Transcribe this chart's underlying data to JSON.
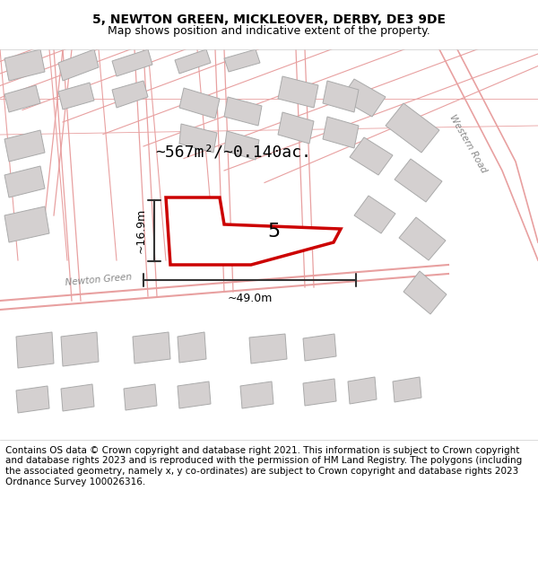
{
  "title": "5, NEWTON GREEN, MICKLEOVER, DERBY, DE3 9DE",
  "subtitle": "Map shows position and indicative extent of the property.",
  "area_text": "~567m²/~0.140ac.",
  "label_5": "5",
  "width_label": "~49.0m",
  "height_label": "~16.9m",
  "road_label": "Newton Green",
  "road_label2": "Western Road",
  "footer": "Contains OS data © Crown copyright and database right 2021. This information is subject to Crown copyright and database rights 2023 and is reproduced with the permission of HM Land Registry. The polygons (including the associated geometry, namely x, y co-ordinates) are subject to Crown copyright and database rights 2023 Ordnance Survey 100026316.",
  "bg_color": "#f5f5f5",
  "map_bg": "#f0eeee",
  "building_color": "#d4d0d0",
  "road_line_color": "#e8a0a0",
  "road_fill_color": "#ffffff",
  "property_color": "#cc0000",
  "property_fill": "#ffffff",
  "dim_line_color": "#333333",
  "footer_fontsize": 7.5,
  "title_fontsize": 10,
  "subtitle_fontsize": 9
}
